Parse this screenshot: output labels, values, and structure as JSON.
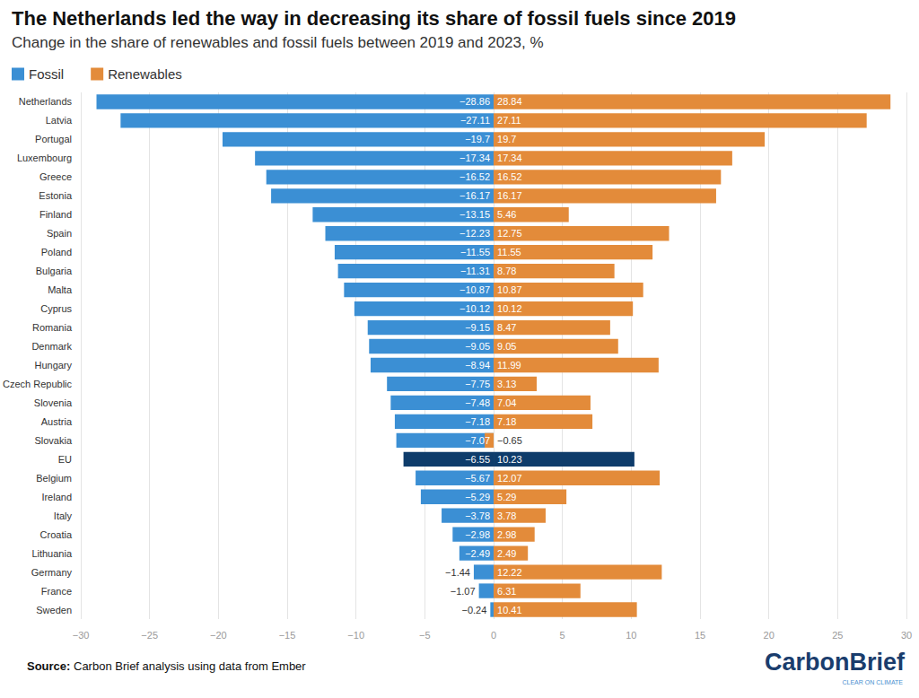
{
  "chart_data": {
    "type": "bar",
    "orientation": "horizontal",
    "title": "The Netherlands led the way in decreasing its share of fossil fuels since 2019",
    "subtitle": "Change in the share of renewables and fossil fuels between 2019 and 2023, %",
    "source": "Source: Carbon Brief analysis using data from Ember",
    "logo_text": "CarbonBrief",
    "logo_tagline": "CLEAR ON CLIMATE",
    "categories": [
      "Netherlands",
      "Latvia",
      "Portugal",
      "Luxembourg",
      "Greece",
      "Estonia",
      "Finland",
      "Spain",
      "Poland",
      "Bulgaria",
      "Malta",
      "Cyprus",
      "Romania",
      "Denmark",
      "Hungary",
      "Czech Republic",
      "Slovenia",
      "Austria",
      "Slovakia",
      "EU",
      "Belgium",
      "Ireland",
      "Italy",
      "Croatia",
      "Lithuania",
      "Germany",
      "France",
      "Sweden"
    ],
    "series": [
      {
        "name": "Fossil",
        "color": "#3b8fd4",
        "colors": [
          "#3b8fd4",
          "#3b8fd4",
          "#3b8fd4",
          "#3b8fd4",
          "#3b8fd4",
          "#3b8fd4",
          "#3b8fd4",
          "#3b8fd4",
          "#3b8fd4",
          "#3b8fd4",
          "#3b8fd4",
          "#3b8fd4",
          "#3b8fd4",
          "#3b8fd4",
          "#3b8fd4",
          "#3b8fd4",
          "#3b8fd4",
          "#3b8fd4",
          "#3b8fd4",
          "#0e3c6b",
          "#3b8fd4",
          "#3b8fd4",
          "#3b8fd4",
          "#3b8fd4",
          "#3b8fd4",
          "#3b8fd4",
          "#3b8fd4",
          "#3b8fd4"
        ],
        "values": [
          -28.86,
          -27.11,
          -19.7,
          -17.34,
          -16.52,
          -16.17,
          -13.15,
          -12.23,
          -11.55,
          -11.31,
          -10.87,
          -10.12,
          -9.15,
          -9.05,
          -8.94,
          -7.75,
          -7.48,
          -7.18,
          -7.07,
          -6.55,
          -5.67,
          -5.29,
          -3.78,
          -2.98,
          -2.49,
          -1.44,
          -1.07,
          -0.24
        ],
        "value_labels": [
          "−28.86",
          "−27.11",
          "−19.7",
          "−17.34",
          "−16.52",
          "−16.17",
          "−13.15",
          "−12.23",
          "−11.55",
          "−11.31",
          "−10.87",
          "−10.12",
          "−9.15",
          "−9.05",
          "−8.94",
          "−7.75",
          "−7.48",
          "−7.18",
          "−7.07",
          "−6.55",
          "−5.67",
          "−5.29",
          "−3.78",
          "−2.98",
          "−2.49",
          "−1.44",
          "−1.07",
          "−0.24"
        ]
      },
      {
        "name": "Renewables",
        "color": "#e38b3a",
        "colors": [
          "#e38b3a",
          "#e38b3a",
          "#e38b3a",
          "#e38b3a",
          "#e38b3a",
          "#e38b3a",
          "#e38b3a",
          "#e38b3a",
          "#e38b3a",
          "#e38b3a",
          "#e38b3a",
          "#e38b3a",
          "#e38b3a",
          "#e38b3a",
          "#e38b3a",
          "#e38b3a",
          "#e38b3a",
          "#e38b3a",
          "#e38b3a",
          "#0e3c6b",
          "#e38b3a",
          "#e38b3a",
          "#e38b3a",
          "#e38b3a",
          "#e38b3a",
          "#e38b3a",
          "#e38b3a",
          "#e38b3a"
        ],
        "values": [
          28.84,
          27.11,
          19.7,
          17.34,
          16.52,
          16.17,
          5.46,
          12.75,
          11.55,
          8.78,
          10.87,
          10.12,
          8.47,
          9.05,
          11.99,
          3.13,
          7.04,
          7.18,
          -0.65,
          10.23,
          12.07,
          5.29,
          3.78,
          2.98,
          2.49,
          12.22,
          6.31,
          10.41
        ],
        "value_labels": [
          "28.84",
          "27.11",
          "19.7",
          "17.34",
          "16.52",
          "16.17",
          "5.46",
          "12.75",
          "11.55",
          "8.78",
          "10.87",
          "10.12",
          "8.47",
          "9.05",
          "11.99",
          "3.13",
          "7.04",
          "7.18",
          "−0.65",
          "10.23",
          "12.07",
          "5.29",
          "3.78",
          "2.98",
          "2.49",
          "12.22",
          "6.31",
          "10.41"
        ]
      }
    ],
    "xlim": [
      -30,
      30
    ],
    "xticks": [
      {
        "value": -30,
        "label": "−30"
      },
      {
        "value": -25,
        "label": "−25"
      },
      {
        "value": -20,
        "label": "−20"
      },
      {
        "value": -15,
        "label": "−15"
      },
      {
        "value": -10,
        "label": "−10"
      },
      {
        "value": -5,
        "label": "−5"
      },
      0,
      5,
      10,
      15,
      20,
      25,
      30
    ],
    "grid": true,
    "legend": "top-left",
    "data_labels": true
  }
}
